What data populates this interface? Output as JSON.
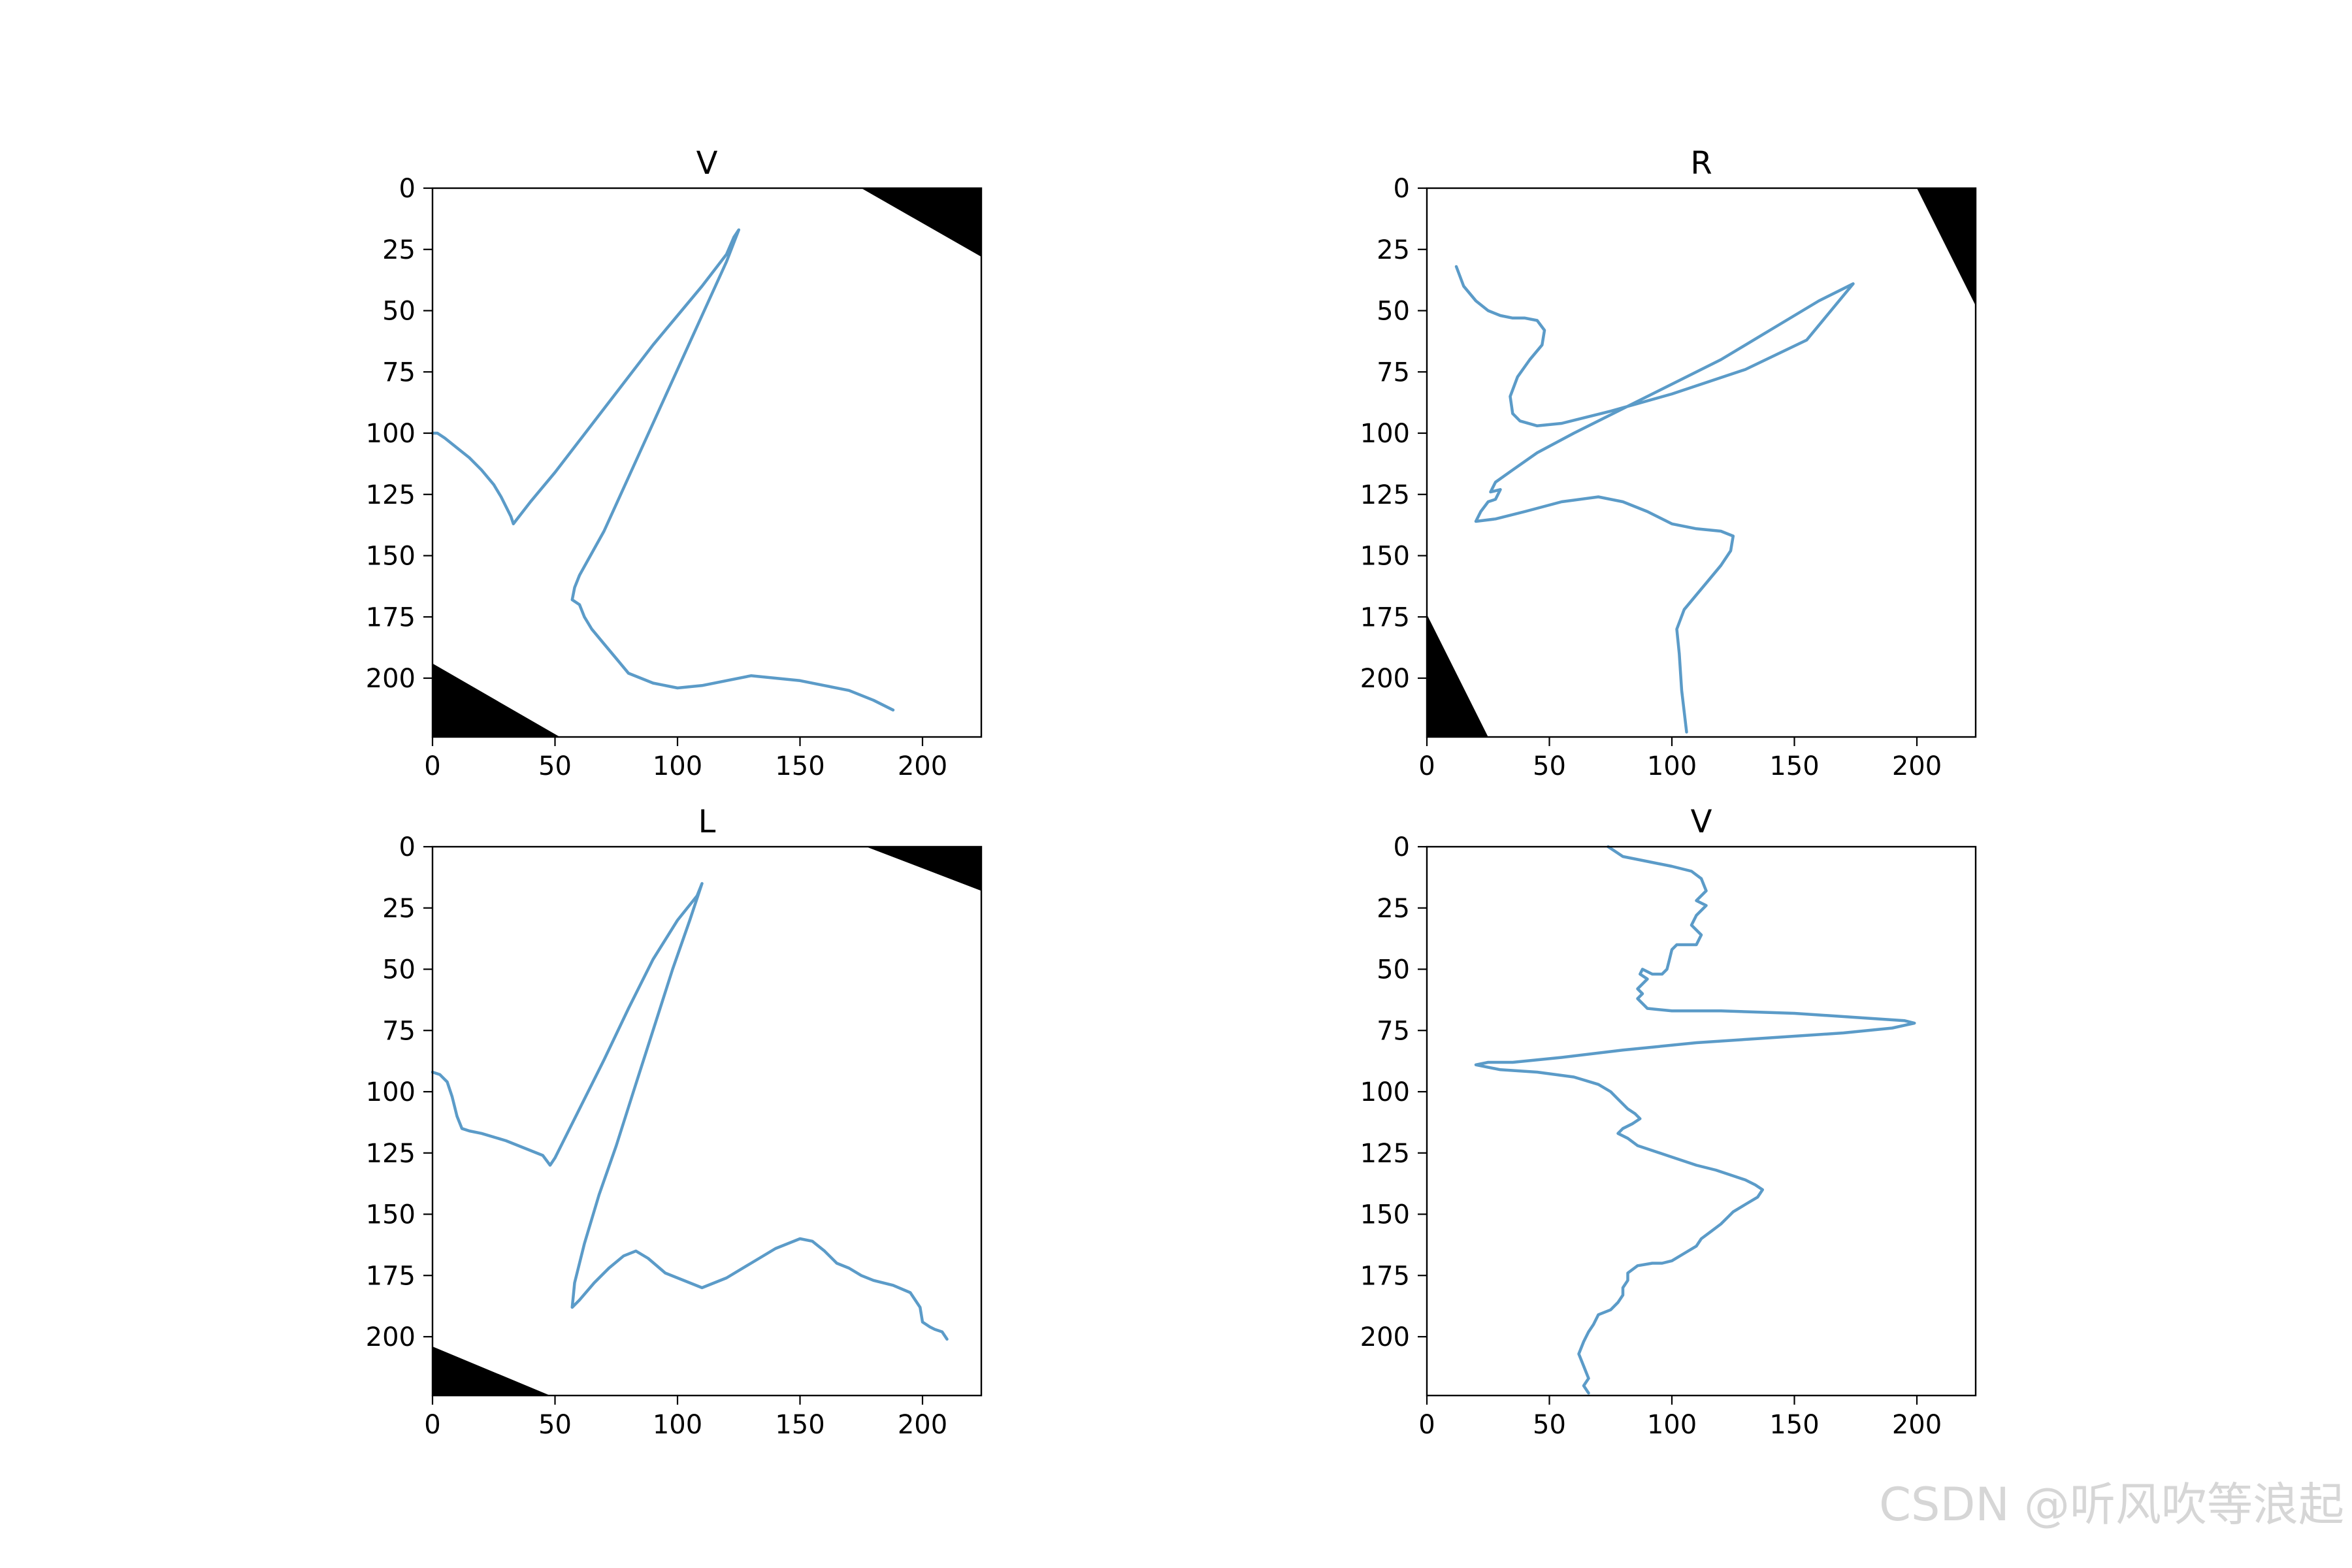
{
  "watermark": "CSDN @听风吹等浪起",
  "chart_data": [
    {
      "type": "image",
      "title": "V",
      "xlim": [
        0,
        224
      ],
      "ylim": [
        224,
        0
      ],
      "xticks": [
        0,
        50,
        100,
        150,
        200
      ],
      "yticks": [
        0,
        25,
        50,
        75,
        100,
        125,
        150,
        175,
        200
      ],
      "line_color": "#5b9bc8",
      "corners": [
        {
          "points": [
            [
              175,
              0
            ],
            [
              224,
              0
            ],
            [
              224,
              28
            ]
          ]
        },
        {
          "points": [
            [
              0,
              194
            ],
            [
              0,
              224
            ],
            [
              52,
              224
            ]
          ]
        }
      ],
      "series": [
        {
          "x": [
            0,
            2,
            5,
            10,
            15,
            20,
            25,
            28,
            30,
            32,
            33,
            40,
            50,
            60,
            70,
            80,
            90,
            100,
            110,
            120,
            123,
            125,
            120,
            110,
            100,
            90,
            80,
            70,
            60,
            58,
            57,
            60,
            62,
            65,
            70,
            75,
            80,
            90,
            100,
            110,
            120,
            130,
            140,
            150,
            160,
            170,
            180,
            188
          ],
          "y": [
            100,
            100,
            102,
            106,
            110,
            115,
            121,
            126,
            130,
            134,
            137,
            128,
            116,
            103,
            90,
            77,
            64,
            52,
            40,
            27,
            20,
            17,
            30,
            52,
            74,
            96,
            118,
            140,
            158,
            163,
            168,
            170,
            175,
            180,
            186,
            192,
            198,
            202,
            204,
            203,
            201,
            199,
            200,
            201,
            203,
            205,
            209,
            213
          ]
        }
      ]
    },
    {
      "type": "image",
      "title": "R",
      "xlim": [
        0,
        224
      ],
      "ylim": [
        224,
        0
      ],
      "xticks": [
        0,
        50,
        100,
        150,
        200
      ],
      "yticks": [
        0,
        25,
        50,
        75,
        100,
        125,
        150,
        175,
        200
      ],
      "line_color": "#5b9bc8",
      "corners": [
        {
          "points": [
            [
              200,
              0
            ],
            [
              224,
              0
            ],
            [
              224,
              48
            ]
          ]
        },
        {
          "points": [
            [
              0,
              174
            ],
            [
              0,
              224
            ],
            [
              25,
              224
            ]
          ]
        }
      ],
      "series": [
        {
          "x": [
            12,
            15,
            20,
            25,
            30,
            35,
            40,
            45,
            48,
            47,
            42,
            37,
            34,
            35,
            38,
            45,
            55,
            75,
            100,
            130,
            155,
            174,
            160,
            140,
            120,
            100,
            80,
            60,
            45,
            35,
            28,
            26,
            30,
            28,
            25,
            22,
            20,
            28,
            40,
            55,
            70,
            80,
            90,
            100,
            110,
            120,
            125,
            124,
            120,
            115,
            110,
            105,
            102,
            103,
            104,
            106
          ],
          "y": [
            32,
            40,
            46,
            50,
            52,
            53,
            53,
            54,
            58,
            64,
            70,
            77,
            85,
            92,
            95,
            97,
            96,
            91,
            84,
            74,
            62,
            39,
            46,
            58,
            70,
            80,
            90,
            100,
            108,
            115,
            120,
            124,
            123,
            127,
            128,
            132,
            136,
            135,
            132,
            128,
            126,
            128,
            132,
            137,
            139,
            140,
            142,
            148,
            154,
            160,
            166,
            172,
            180,
            190,
            205,
            222
          ]
        }
      ]
    },
    {
      "type": "image",
      "title": "L",
      "xlim": [
        0,
        224
      ],
      "ylim": [
        224,
        0
      ],
      "xticks": [
        0,
        50,
        100,
        150,
        200
      ],
      "yticks": [
        0,
        25,
        50,
        75,
        100,
        125,
        150,
        175,
        200
      ],
      "line_color": "#5b9bc8",
      "corners": [
        {
          "points": [
            [
              177,
              0
            ],
            [
              224,
              0
            ],
            [
              224,
              18
            ]
          ]
        },
        {
          "points": [
            [
              0,
              204
            ],
            [
              0,
              224
            ],
            [
              48,
              224
            ]
          ]
        }
      ],
      "series": [
        {
          "x": [
            0,
            3,
            6,
            8,
            10,
            12,
            15,
            20,
            30,
            40,
            45,
            48,
            50,
            60,
            70,
            80,
            90,
            100,
            108,
            110,
            105,
            98,
            90,
            82,
            75,
            68,
            62,
            58,
            57,
            60,
            66,
            72,
            78,
            83,
            88,
            95,
            100,
            110,
            120,
            130,
            140,
            150,
            155,
            160,
            165,
            170,
            175,
            180,
            188,
            195,
            199,
            200,
            203,
            205,
            208,
            210
          ],
          "y": [
            92,
            93,
            96,
            102,
            110,
            115,
            116,
            117,
            120,
            124,
            126,
            130,
            127,
            107,
            87,
            66,
            46,
            30,
            20,
            15,
            30,
            50,
            75,
            100,
            122,
            142,
            162,
            178,
            188,
            185,
            178,
            172,
            167,
            165,
            168,
            174,
            176,
            180,
            176,
            170,
            164,
            160,
            161,
            165,
            170,
            172,
            175,
            177,
            179,
            182,
            188,
            194,
            196,
            197,
            198,
            201
          ]
        }
      ]
    },
    {
      "type": "image",
      "title": "V",
      "xlim": [
        0,
        224
      ],
      "ylim": [
        224,
        0
      ],
      "xticks": [
        0,
        50,
        100,
        150,
        200
      ],
      "yticks": [
        0,
        25,
        50,
        75,
        100,
        125,
        150,
        175,
        200
      ],
      "line_color": "#5b9bc8",
      "corners": [],
      "series": [
        {
          "x": [
            74,
            80,
            90,
            100,
            108,
            112,
            114,
            110,
            114,
            110,
            108,
            112,
            110,
            104,
            102,
            100,
            99,
            98,
            96,
            92,
            88,
            87,
            90,
            88,
            86,
            88,
            86,
            88,
            90,
            100,
            120,
            150,
            180,
            195,
            199,
            190,
            170,
            140,
            110,
            80,
            55,
            35,
            25,
            20,
            30,
            45,
            60,
            70,
            75,
            78,
            80,
            82,
            85,
            87,
            84,
            80,
            78,
            82,
            86,
            92,
            98,
            104,
            110,
            118,
            124,
            130,
            134,
            137,
            135,
            130,
            125,
            123,
            120,
            116,
            112,
            110,
            105,
            100,
            96,
            92,
            86,
            82,
            82,
            80,
            80,
            78,
            75,
            70,
            68,
            66,
            64,
            62,
            64,
            66,
            64,
            66
          ],
          "y": [
            0,
            4,
            6,
            8,
            10,
            13,
            18,
            22,
            24,
            28,
            32,
            36,
            40,
            40,
            40,
            42,
            46,
            50,
            52,
            52,
            50,
            52,
            54,
            56,
            58,
            60,
            62,
            64,
            66,
            67,
            67,
            68,
            70,
            71,
            72,
            74,
            76,
            78,
            80,
            83,
            86,
            88,
            88,
            89,
            91,
            92,
            94,
            97,
            100,
            103,
            105,
            107,
            109,
            111,
            113,
            115,
            117,
            119,
            122,
            124,
            126,
            128,
            130,
            132,
            134,
            136,
            138,
            140,
            143,
            146,
            149,
            151,
            154,
            157,
            160,
            163,
            166,
            169,
            170,
            170,
            171,
            174,
            177,
            180,
            183,
            186,
            189,
            191,
            195,
            198,
            202,
            207,
            212,
            217,
            220,
            223
          ]
        }
      ]
    }
  ]
}
